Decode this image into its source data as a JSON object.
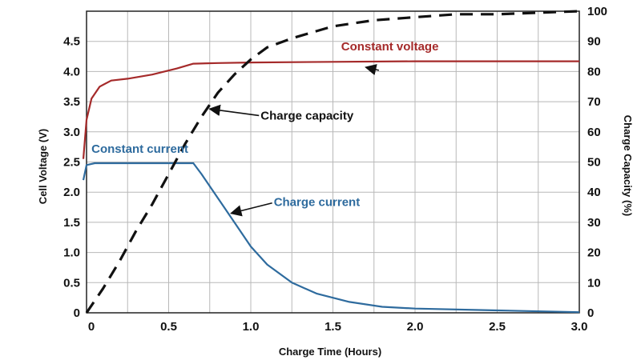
{
  "chart_data": {
    "type": "line",
    "title": "",
    "xlabel": "Charge Time (Hours)",
    "ylabel_left": "Cell Voltage (V)",
    "ylabel_right": "Charge Capacity (%)",
    "xlim": [
      0,
      3.0
    ],
    "ylim_left": [
      0,
      5.0
    ],
    "ylim_right": [
      0,
      100
    ],
    "grid": true,
    "x_ticks": [
      "0",
      "0.5",
      "1.0",
      "1.5",
      "2.0",
      "2.5",
      "3.0"
    ],
    "x_tick_values": [
      0,
      0.5,
      1.0,
      1.5,
      2.0,
      2.5,
      3.0
    ],
    "y_left_ticks": [
      "0",
      "0.5",
      "1.0",
      "1.5",
      "2.0",
      "2.5",
      "3.0",
      "3.5",
      "4.0",
      "4.5"
    ],
    "y_left_tick_values": [
      0,
      0.5,
      1.0,
      1.5,
      2.0,
      2.5,
      3.0,
      3.5,
      4.0,
      4.5
    ],
    "y_right_ticks": [
      "0",
      "10",
      "20",
      "30",
      "40",
      "50",
      "60",
      "70",
      "80",
      "90",
      "100"
    ],
    "y_right_tick_values": [
      0,
      10,
      20,
      30,
      40,
      50,
      60,
      70,
      80,
      90,
      100
    ],
    "series": [
      {
        "key": "voltage",
        "axis": "left",
        "style": "solid",
        "color": "#a52a2a",
        "x": [
          -0.02,
          0.0,
          0.03,
          0.08,
          0.15,
          0.25,
          0.4,
          0.55,
          0.65,
          0.8,
          1.0,
          1.5,
          2.0,
          2.5,
          3.0
        ],
        "y": [
          2.55,
          3.2,
          3.55,
          3.75,
          3.85,
          3.88,
          3.95,
          4.05,
          4.13,
          4.14,
          4.15,
          4.16,
          4.17,
          4.17,
          4.17
        ]
      },
      {
        "key": "current",
        "axis": "left",
        "style": "solid",
        "color": "#2e6b9e",
        "x": [
          -0.02,
          0.0,
          0.05,
          0.3,
          0.5,
          0.65,
          0.7,
          0.8,
          0.9,
          1.0,
          1.1,
          1.25,
          1.4,
          1.6,
          1.8,
          2.0,
          2.5,
          3.0
        ],
        "y": [
          2.2,
          2.45,
          2.48,
          2.48,
          2.48,
          2.48,
          2.3,
          1.9,
          1.5,
          1.1,
          0.8,
          0.5,
          0.32,
          0.18,
          0.1,
          0.07,
          0.04,
          0.01
        ]
      },
      {
        "key": "capacity",
        "axis": "right",
        "style": "dashed",
        "color": "#111111",
        "x": [
          0.0,
          0.1,
          0.2,
          0.3,
          0.4,
          0.5,
          0.6,
          0.7,
          0.8,
          0.9,
          1.0,
          1.1,
          1.25,
          1.5,
          1.75,
          2.0,
          2.25,
          2.5,
          2.75,
          3.0
        ],
        "y": [
          0,
          8,
          17,
          27,
          36,
          46,
          56,
          65,
          73,
          79,
          84,
          88,
          91,
          95,
          97,
          98,
          99,
          99,
          99.5,
          100
        ]
      }
    ],
    "annotations": [
      {
        "key": "constant_voltage",
        "text": "Constant voltage",
        "color": "#a52a2a",
        "x": 1.55,
        "y": 4.35,
        "arrow": {
          "from": [
            1.78,
            4.02
          ],
          "to": [
            1.7,
            4.07
          ]
        }
      },
      {
        "key": "charge_capacity",
        "text": "Charge capacity",
        "color": "#111111",
        "x": 1.06,
        "y": 3.2,
        "arrow": {
          "from": [
            1.05,
            3.27
          ],
          "to": [
            0.75,
            3.38
          ]
        }
      },
      {
        "key": "constant_current",
        "text": "Constant current",
        "color": "#2e6b9e",
        "x": 0.03,
        "y": 2.65,
        "arrow": null
      },
      {
        "key": "charge_current",
        "text": "Charge current",
        "color": "#2e6b9e",
        "x": 1.14,
        "y": 1.77,
        "arrow": {
          "from": [
            1.13,
            1.82
          ],
          "to": [
            0.88,
            1.65
          ]
        }
      }
    ]
  }
}
